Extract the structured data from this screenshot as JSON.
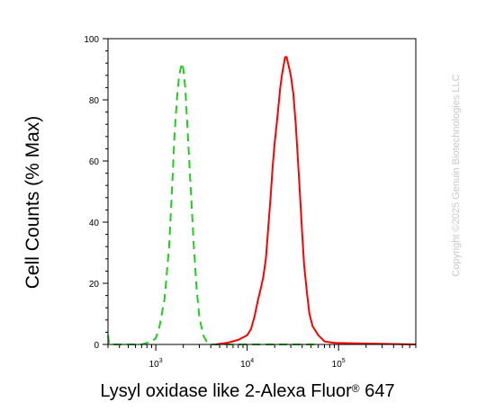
{
  "chart_data": {
    "type": "line",
    "ylabel": "Cell Counts (% Max)",
    "xlabel_main": "Lysyl oxidase like 2-Alexa Fluor",
    "xlabel_sup": "®",
    "xlabel_tail": " 647",
    "x_scale": "log",
    "xlim": [
      300,
      700000
    ],
    "ylim": [
      0,
      100
    ],
    "y_ticks": [
      0,
      20,
      40,
      60,
      80,
      100
    ],
    "x_ticks": [
      {
        "value": 1000,
        "base": "10",
        "exp": "3"
      },
      {
        "value": 10000,
        "base": "10",
        "exp": "4"
      },
      {
        "value": 100000,
        "base": "10",
        "exp": "5"
      }
    ],
    "grid": false,
    "series": [
      {
        "color": "#22cc22",
        "dash": "9,6",
        "points": [
          [
            300,
            3
          ],
          [
            310,
            0
          ],
          [
            700,
            0
          ],
          [
            900,
            1
          ],
          [
            1000,
            2
          ],
          [
            1100,
            6
          ],
          [
            1250,
            15
          ],
          [
            1400,
            32
          ],
          [
            1500,
            50
          ],
          [
            1600,
            68
          ],
          [
            1700,
            80
          ],
          [
            1800,
            88
          ],
          [
            1900,
            91
          ],
          [
            1950,
            92
          ],
          [
            2000,
            90
          ],
          [
            2100,
            84
          ],
          [
            2200,
            73
          ],
          [
            2400,
            52
          ],
          [
            2600,
            33
          ],
          [
            2800,
            18
          ],
          [
            3000,
            9
          ],
          [
            3300,
            3
          ],
          [
            3600,
            1
          ],
          [
            4000,
            0
          ],
          [
            5000,
            0
          ],
          [
            55000,
            0
          ]
        ]
      },
      {
        "color": "#ff0000",
        "dash": "",
        "points": [
          [
            4500,
            0
          ],
          [
            6000,
            0.5
          ],
          [
            8000,
            1.5
          ],
          [
            10000,
            3
          ],
          [
            11000,
            5
          ],
          [
            12000,
            9
          ],
          [
            13000,
            14
          ],
          [
            14000,
            18
          ],
          [
            15000,
            22
          ],
          [
            16000,
            28
          ],
          [
            17000,
            38
          ],
          [
            18000,
            48
          ],
          [
            19000,
            58
          ],
          [
            20000,
            66
          ],
          [
            21000,
            72
          ],
          [
            22000,
            78
          ],
          [
            23000,
            84
          ],
          [
            24000,
            88
          ],
          [
            25000,
            91
          ],
          [
            26000,
            94
          ],
          [
            27000,
            94
          ],
          [
            28000,
            92
          ],
          [
            29000,
            90
          ],
          [
            30000,
            88
          ],
          [
            32000,
            82
          ],
          [
            34000,
            72
          ],
          [
            36000,
            60
          ],
          [
            38000,
            48
          ],
          [
            40000,
            36
          ],
          [
            42000,
            26
          ],
          [
            45000,
            17
          ],
          [
            48000,
            10
          ],
          [
            52000,
            6
          ],
          [
            60000,
            3
          ],
          [
            70000,
            1
          ],
          [
            90000,
            0.5
          ],
          [
            700000,
            0
          ]
        ]
      }
    ]
  },
  "watermark": "Copyright ©2025 Genuin Biotechnologies LLC"
}
